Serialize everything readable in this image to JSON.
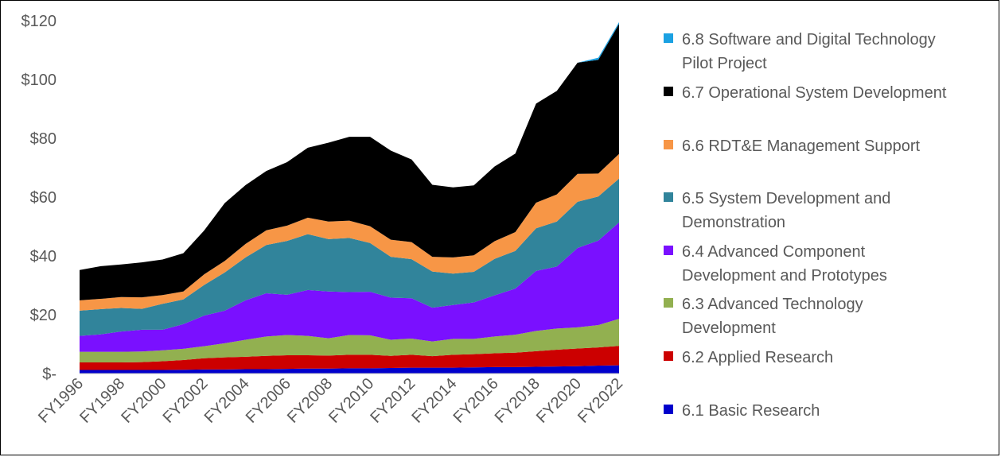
{
  "chart_data": {
    "type": "area",
    "stacked": true,
    "title": "",
    "xlabel": "",
    "ylabel": "",
    "ylim": [
      0,
      120
    ],
    "yticks": [
      0,
      20,
      40,
      60,
      80,
      100,
      120
    ],
    "ytick_labels": [
      "$-",
      "$20",
      "$40",
      "$60",
      "$80",
      "$100",
      "$120"
    ],
    "x": [
      "FY1996",
      "FY1997",
      "FY1998",
      "FY1999",
      "FY2000",
      "FY2001",
      "FY2002",
      "FY2003",
      "FY2004",
      "FY2005",
      "FY2006",
      "FY2007",
      "FY2008",
      "FY2009",
      "FY2010",
      "FY2011",
      "FY2012",
      "FY2013",
      "FY2014",
      "FY2015",
      "FY2016",
      "FY2017",
      "FY2018",
      "FY2019",
      "FY2020",
      "FY2021",
      "FY2022"
    ],
    "xtick_labels": [
      "FY1996",
      "FY1998",
      "FY2000",
      "FY2002",
      "FY2004",
      "FY2006",
      "FY2008",
      "FY2010",
      "FY2012",
      "FY2014",
      "FY2016",
      "FY2018",
      "FY2020",
      "FY2022"
    ],
    "legend_position": "right",
    "grid": false,
    "series": [
      {
        "name": "6.1 Basic Research",
        "color": "#0000CC",
        "values": [
          1.2,
          1.2,
          1.2,
          1.2,
          1.2,
          1.3,
          1.4,
          1.4,
          1.5,
          1.5,
          1.6,
          1.7,
          1.7,
          1.8,
          1.8,
          1.9,
          2.0,
          2.0,
          2.0,
          2.1,
          2.2,
          2.2,
          2.3,
          2.4,
          2.5,
          2.7,
          2.8
        ]
      },
      {
        "name": "6.2  Applied Research",
        "color": "#CC0000",
        "values": [
          2.6,
          2.6,
          2.6,
          2.7,
          3.0,
          3.3,
          3.8,
          4.1,
          4.2,
          4.5,
          4.6,
          4.5,
          4.4,
          4.6,
          4.6,
          4.1,
          4.4,
          3.9,
          4.4,
          4.5,
          4.7,
          4.9,
          5.3,
          5.7,
          6.0,
          6.2,
          6.6
        ]
      },
      {
        "name": "6.3  Advanced Technology Development",
        "color": "#92B050",
        "values": [
          3.6,
          3.6,
          3.6,
          3.6,
          3.7,
          3.8,
          4.1,
          4.8,
          5.8,
          6.6,
          6.9,
          6.6,
          5.9,
          6.7,
          6.6,
          5.5,
          5.5,
          5.0,
          5.4,
          5.2,
          5.7,
          6.1,
          6.9,
          7.2,
          7.2,
          7.6,
          9.2
        ]
      },
      {
        "name": "6.4 Advanced Component Development and Prototypes",
        "color": "#7A10FF",
        "values": [
          5.4,
          5.9,
          6.9,
          7.4,
          7.0,
          8.4,
          10.4,
          11.1,
          13.4,
          14.7,
          13.7,
          15.6,
          15.9,
          14.6,
          14.8,
          14.3,
          13.7,
          11.5,
          11.5,
          12.4,
          14.0,
          15.7,
          20.4,
          21.1,
          27.0,
          28.7,
          32.8
        ]
      },
      {
        "name": "6.5 System Development and Demonstration",
        "color": "#31849B",
        "values": [
          8.6,
          8.6,
          8.0,
          7.1,
          8.8,
          8.4,
          10.4,
          13.0,
          14.6,
          16.4,
          18.3,
          19.0,
          17.8,
          18.4,
          16.6,
          13.9,
          13.3,
          12.3,
          10.7,
          10.4,
          12.4,
          12.8,
          14.5,
          15.3,
          15.7,
          15.0,
          14.9
        ]
      },
      {
        "name": "6.6 RDT&E Management Support",
        "color": "#F79646",
        "values": [
          3.5,
          3.5,
          3.7,
          3.9,
          3.0,
          2.7,
          3.6,
          3.9,
          4.6,
          5.0,
          5.2,
          5.6,
          6.0,
          5.9,
          5.7,
          5.8,
          5.8,
          5.0,
          5.5,
          5.6,
          6.0,
          6.4,
          8.7,
          9.2,
          9.5,
          7.8,
          8.4
        ]
      },
      {
        "name": "6.7 Operational System Development",
        "color": "#000000",
        "values": [
          10.3,
          11.1,
          11.1,
          11.9,
          12.1,
          13.0,
          14.9,
          19.7,
          20.0,
          20.2,
          21.6,
          23.8,
          26.8,
          28.5,
          30.4,
          30.3,
          28.1,
          24.5,
          23.8,
          23.8,
          25.4,
          26.7,
          33.7,
          35.2,
          37.8,
          38.7,
          44.2
        ]
      },
      {
        "name": "6.8 Software and Digital Technology Pilot Project",
        "color": "#1BA1E2",
        "values": [
          0,
          0,
          0,
          0,
          0,
          0,
          0,
          0,
          0,
          0,
          0,
          0,
          0,
          0,
          0,
          0,
          0,
          0,
          0,
          0,
          0,
          0,
          0,
          0,
          0,
          0.7,
          0.6
        ]
      }
    ],
    "legend": [
      {
        "lines": [
          "6.8 Software and Digital Technology",
          "Pilot Project"
        ],
        "color": "#1BA1E2"
      },
      {
        "lines": [
          "6.7 Operational System Development"
        ],
        "color": "#000000"
      },
      {
        "lines": [
          "6.6 RDT&E Management Support"
        ],
        "color": "#F79646"
      },
      {
        "lines": [
          "6.5 System Development and",
          "Demonstration"
        ],
        "color": "#31849B"
      },
      {
        "lines": [
          "6.4 Advanced Component",
          "Development and Prototypes"
        ],
        "color": "#7A10FF"
      },
      {
        "lines": [
          "6.3  Advanced Technology",
          "Development"
        ],
        "color": "#92B050"
      },
      {
        "lines": [
          "6.2  Applied Research"
        ],
        "color": "#CC0000"
      },
      {
        "lines": [
          "6.1 Basic Research"
        ],
        "color": "#0000CC"
      }
    ]
  }
}
